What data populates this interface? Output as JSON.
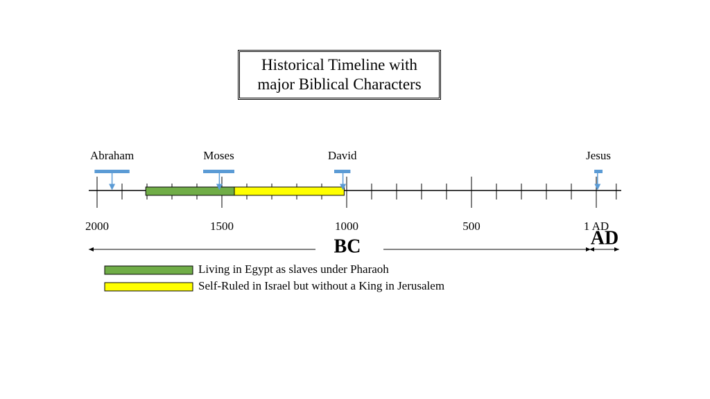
{
  "chart_data": {
    "type": "timeline",
    "title": "Historical Timeline with major Biblical Characters",
    "xlim": [
      -2000,
      0
    ],
    "xticks": [
      {
        "value": -2000,
        "label": "2000"
      },
      {
        "value": -1500,
        "label": "1500"
      },
      {
        "value": -1000,
        "label": "1000"
      },
      {
        "value": -500,
        "label": "500"
      },
      {
        "value": 0,
        "label": "1 AD"
      }
    ],
    "minor_ticks": [
      -1900,
      -1800,
      -1700,
      -1600,
      -1400,
      -1300,
      -1200,
      -1100,
      -900,
      -800,
      -700,
      -600,
      -400,
      -300,
      -200,
      -100,
      80
    ],
    "characters": [
      {
        "name": "Abraham",
        "start": -2010,
        "end": -1870,
        "marker": -1940
      },
      {
        "name": "Moses",
        "start": -1575,
        "end": -1450,
        "marker": -1510
      },
      {
        "name": "David",
        "start": -1050,
        "end": -985,
        "marker": -1015
      },
      {
        "name": "Jesus",
        "start": -8,
        "end": 25,
        "marker": 5
      }
    ],
    "periods": [
      {
        "name": "Living in Egypt as slaves under Pharaoh",
        "color": "#70ad47",
        "start": -1805,
        "end": -1450
      },
      {
        "name": "Self-Ruled in Israel but without a King in Jerusalem",
        "color": "#ffff00",
        "start": -1450,
        "end": -1010
      }
    ],
    "eras": [
      "BC",
      "AD"
    ]
  }
}
